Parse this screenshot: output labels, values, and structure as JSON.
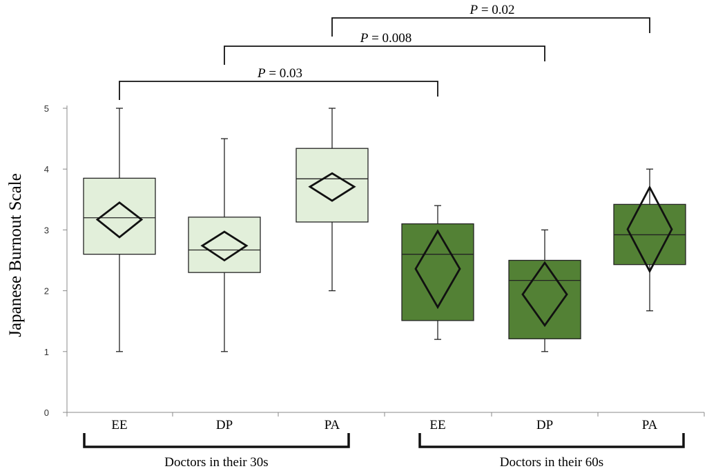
{
  "chart_data": {
    "type": "box",
    "ylabel": "Japanese Burnout Scale",
    "ylim": [
      0,
      5
    ],
    "yticks": [
      0,
      1,
      2,
      3,
      4,
      5
    ],
    "grid": false,
    "groups": [
      {
        "label": "Doctors in their 30s",
        "fill": "#e2efda"
      },
      {
        "label": "Doctors in their 60s",
        "fill": "#538135"
      }
    ],
    "boxes": [
      {
        "category": "EE",
        "group": 0,
        "min": 1.0,
        "q1": 2.6,
        "median": 3.2,
        "q3": 3.85,
        "max": 5.0,
        "mean": 3.17,
        "ci": [
          2.88,
          3.45
        ]
      },
      {
        "category": "DP",
        "group": 0,
        "min": 1.0,
        "q1": 2.3,
        "median": 2.67,
        "q3": 3.21,
        "max": 4.5,
        "mean": 2.74,
        "ci": [
          2.5,
          2.97
        ]
      },
      {
        "category": "PA",
        "group": 0,
        "min": 2.0,
        "q1": 3.13,
        "median": 3.84,
        "q3": 4.34,
        "max": 5.0,
        "mean": 3.71,
        "ci": [
          3.48,
          3.93
        ]
      },
      {
        "category": "EE",
        "group": 1,
        "min": 1.2,
        "q1": 1.51,
        "median": 2.6,
        "q3": 3.1,
        "max": 3.4,
        "mean": 2.36,
        "ci": [
          1.73,
          2.98
        ]
      },
      {
        "category": "DP",
        "group": 1,
        "min": 1.0,
        "q1": 1.21,
        "median": 2.17,
        "q3": 2.5,
        "max": 3.0,
        "mean": 1.94,
        "ci": [
          1.43,
          2.46
        ]
      },
      {
        "category": "PA",
        "group": 1,
        "min": 1.67,
        "q1": 2.43,
        "median": 2.92,
        "q3": 3.42,
        "max": 4.0,
        "mean": 3.01,
        "ci": [
          2.32,
          3.7
        ]
      }
    ],
    "comparisons": [
      {
        "from": 0,
        "to": 3,
        "p_prefix": "P",
        "p_value": " = 0.03"
      },
      {
        "from": 1,
        "to": 4,
        "p_prefix": "P",
        "p_value": " = 0.008"
      },
      {
        "from": 2,
        "to": 5,
        "p_prefix": "P",
        "p_value": " = 0.02"
      }
    ]
  }
}
